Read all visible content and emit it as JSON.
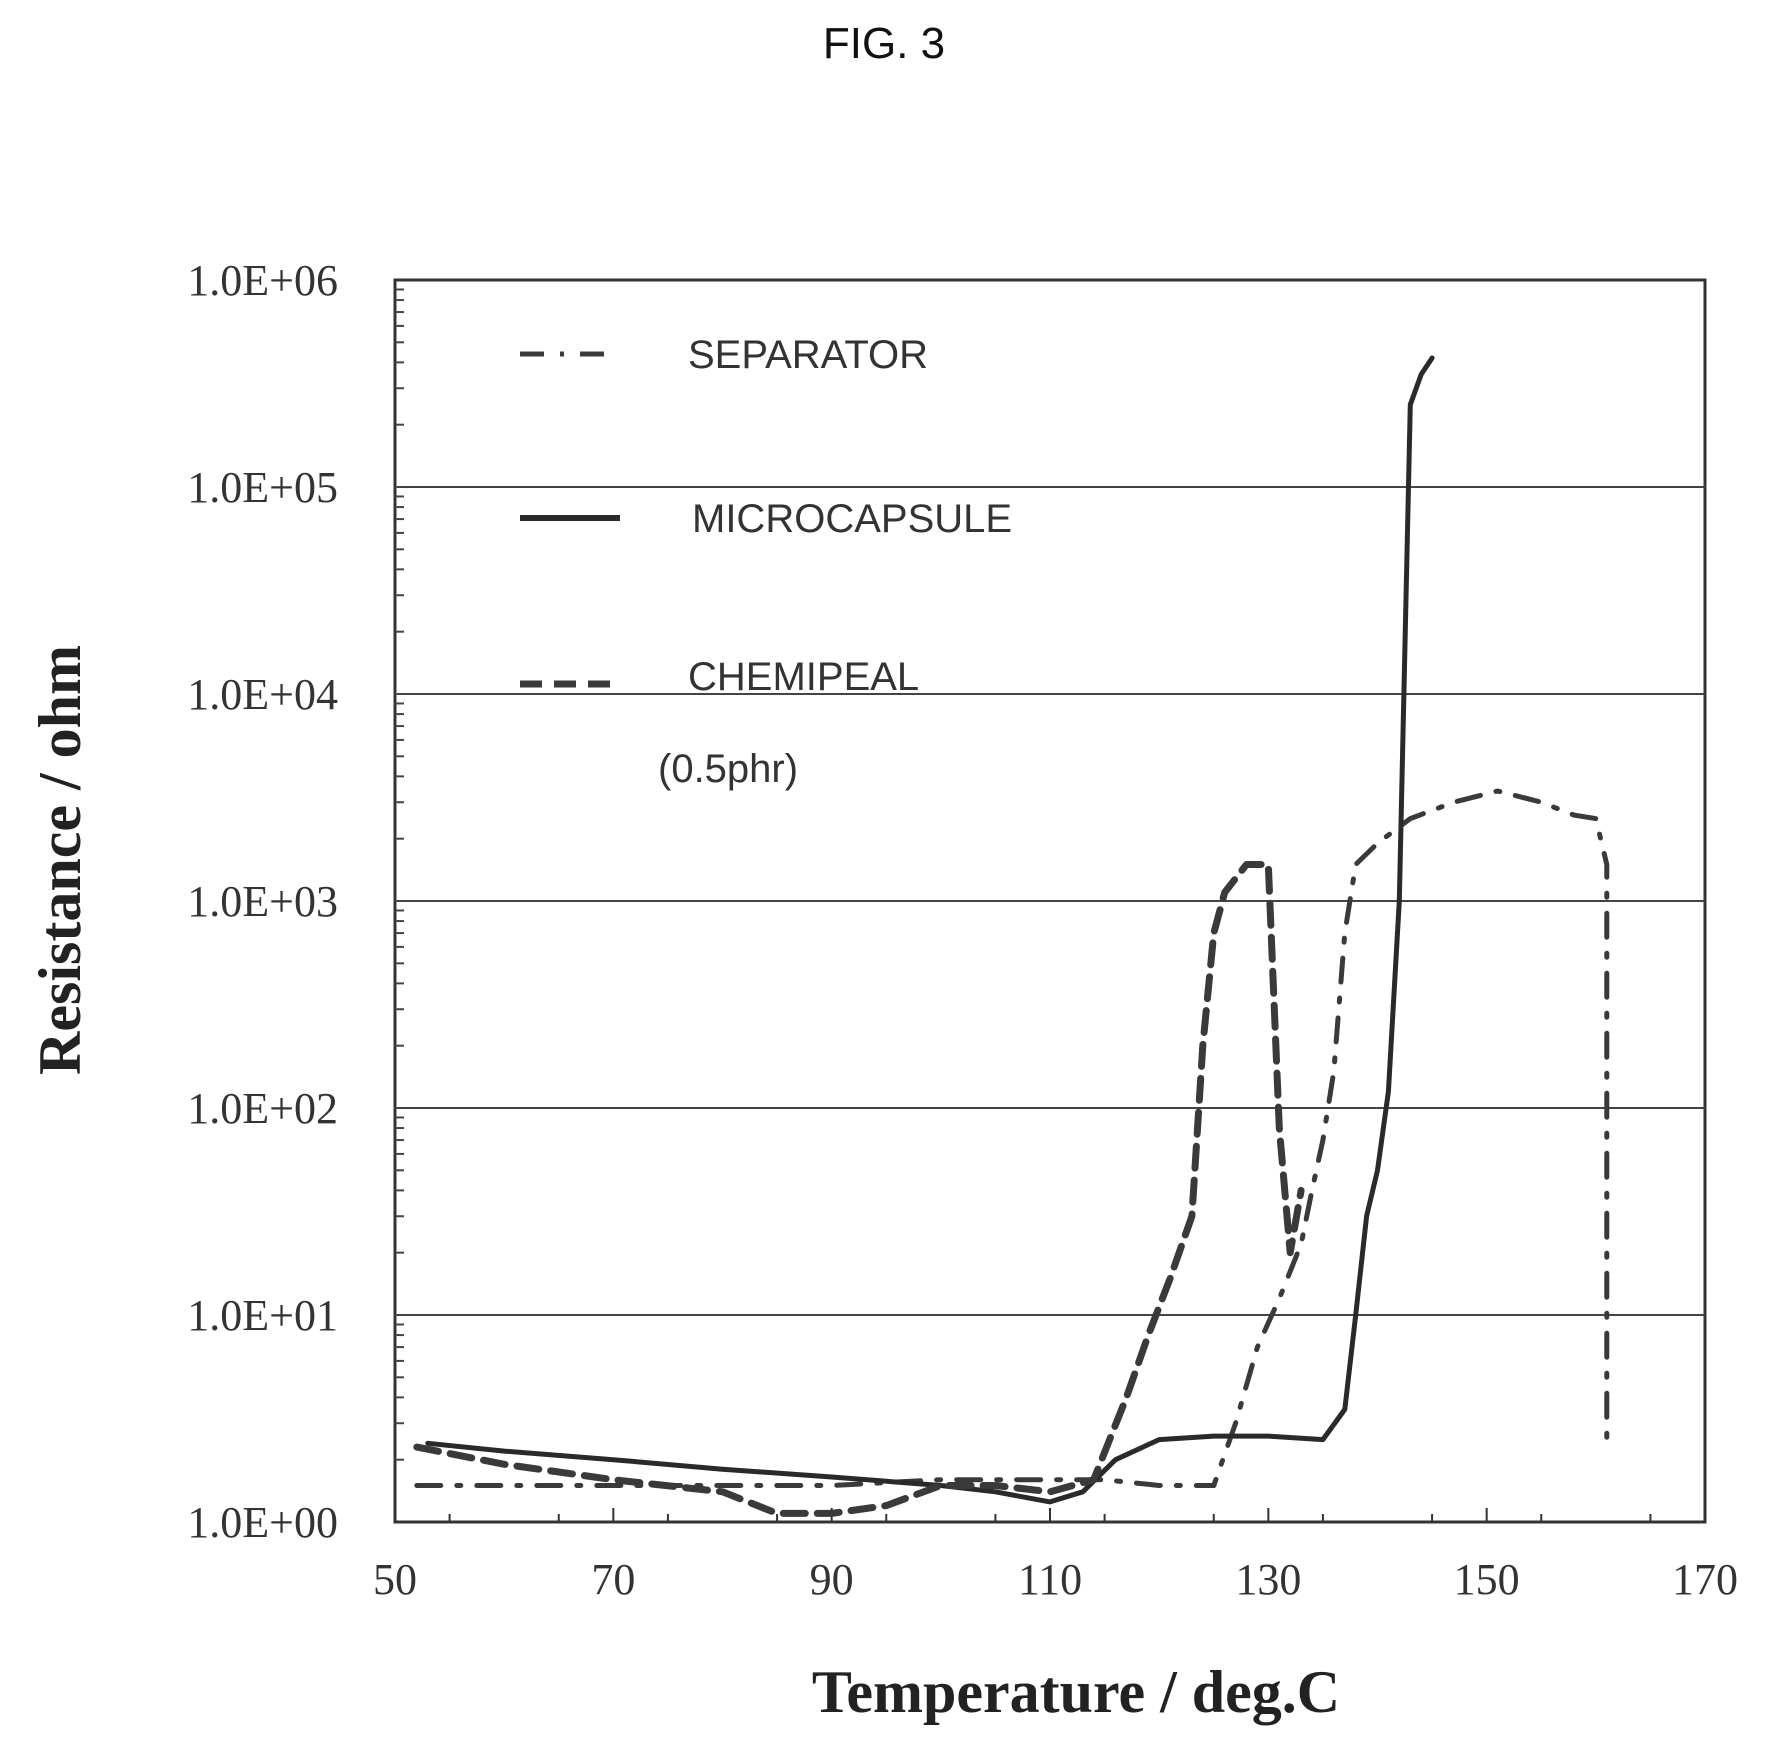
{
  "figure_label": "FIG. 3",
  "chart_data": {
    "type": "line",
    "title": "",
    "xlabel": "Temperature / deg.C",
    "ylabel": "Resistance / ohm",
    "xlim": [
      50,
      170
    ],
    "ylim": [
      1,
      1000000
    ],
    "yscale": "log",
    "x_ticks": [
      50,
      70,
      90,
      110,
      130,
      150,
      170
    ],
    "x_tick_labels": [
      "50",
      "70",
      "90",
      "110",
      "130",
      "150",
      "170"
    ],
    "y_ticks": [
      1,
      10,
      100,
      1000,
      10000,
      100000,
      1000000
    ],
    "y_tick_labels": [
      "1.0E+00",
      "1.0E+01",
      "1.0E+02",
      "1.0E+03",
      "1.0E+04",
      "1.0E+05",
      "1.0E+06"
    ],
    "grid": "horizontal",
    "legend_position": "top-left",
    "legend_note": "(0.5phr)",
    "series": [
      {
        "name": "SEPARATOR",
        "style": "dash-dot",
        "color": "#3a3a3a",
        "x": [
          52,
          60,
          70,
          80,
          90,
          100,
          110,
          115,
          120,
          125,
          127,
          129,
          131,
          133,
          134,
          135,
          136,
          137,
          138,
          140,
          143,
          147,
          151,
          155,
          158,
          160,
          161,
          161,
          161,
          161
        ],
        "y": [
          1.5,
          1.5,
          1.5,
          1.5,
          1.5,
          1.6,
          1.6,
          1.6,
          1.5,
          1.5,
          3,
          7,
          12,
          22,
          40,
          70,
          150,
          700,
          1500,
          1900,
          2500,
          3000,
          3400,
          3000,
          2600,
          2500,
          1500,
          100,
          10,
          2.2
        ]
      },
      {
        "name": "MICROCAPSULE",
        "style": "solid",
        "color": "#2a2a2a",
        "x": [
          53,
          60,
          70,
          80,
          90,
          100,
          105,
          110,
          113,
          116,
          120,
          125,
          130,
          135,
          137,
          138,
          139,
          140,
          141,
          142,
          143,
          144,
          145
        ],
        "y": [
          2.4,
          2.2,
          2.0,
          1.8,
          1.65,
          1.5,
          1.4,
          1.25,
          1.4,
          2.0,
          2.5,
          2.6,
          2.6,
          2.5,
          3.5,
          10,
          30,
          50,
          120,
          1000,
          250000,
          350000,
          420000
        ]
      },
      {
        "name": "CHEMIPEAL",
        "style": "dashed",
        "color": "#3a3a3a",
        "x": [
          52,
          60,
          70,
          80,
          85,
          90,
          95,
          100,
          105,
          110,
          114,
          117,
          119,
          121,
          123,
          124,
          125,
          126,
          128,
          130,
          131,
          132,
          133
        ],
        "y": [
          2.3,
          1.9,
          1.6,
          1.4,
          1.1,
          1.1,
          1.2,
          1.5,
          1.5,
          1.4,
          1.6,
          4,
          8,
          15,
          30,
          200,
          700,
          1100,
          1500,
          1500,
          80,
          20,
          40
        ]
      }
    ]
  }
}
